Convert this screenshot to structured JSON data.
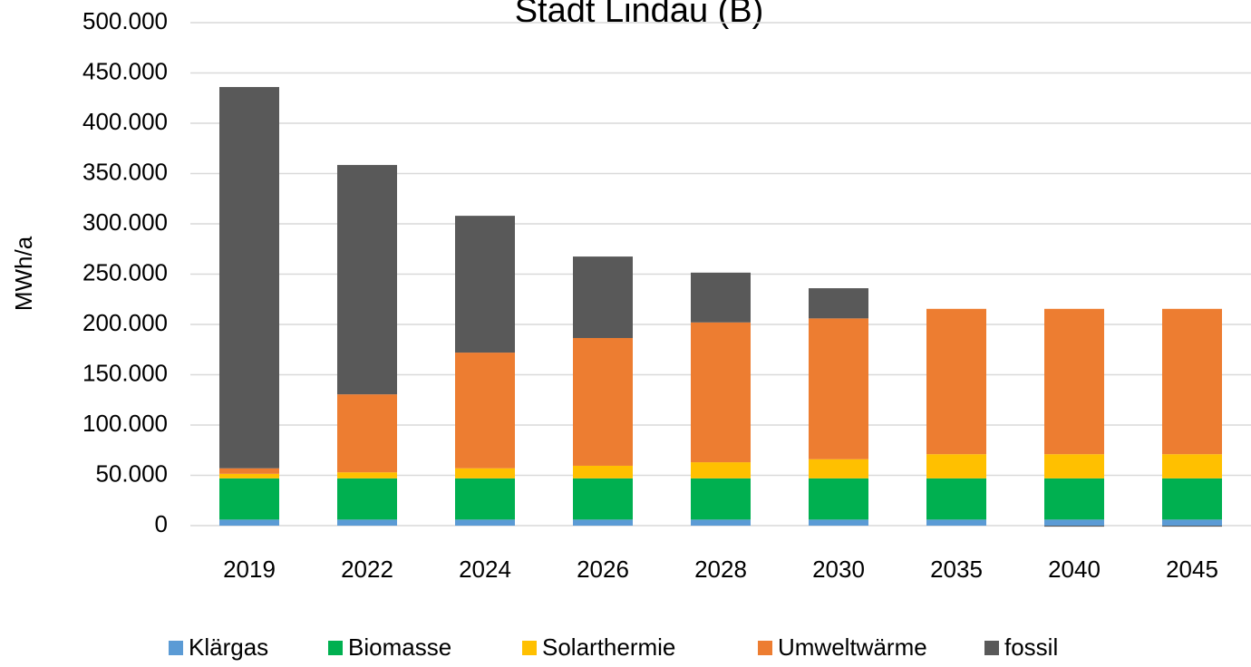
{
  "chart_data": {
    "type": "stacked_bar",
    "title": "Stadt Lindau (B)",
    "y_label": "MWh/a",
    "categories": [
      "2019",
      "2022",
      "2024",
      "2026",
      "2028",
      "2030",
      "2035",
      "2040",
      "2045"
    ],
    "series": [
      {
        "name": "Klärgas",
        "color": "#5b9bd5",
        "values": [
          6000,
          6000,
          6000,
          6000,
          6000,
          6000,
          6000,
          6000,
          6000
        ]
      },
      {
        "name": "Biomasse",
        "color": "#00b050",
        "values": [
          41000,
          41000,
          41000,
          41000,
          41000,
          41000,
          41000,
          41000,
          41000
        ]
      },
      {
        "name": "Solarthermie",
        "color": "#ffc000",
        "values": [
          4500,
          6000,
          10000,
          12500,
          16000,
          19000,
          24000,
          24000,
          24000
        ]
      },
      {
        "name": "Umweltwärme",
        "color": "#ed7d31",
        "values": [
          5500,
          77500,
          115000,
          127000,
          139000,
          140000,
          144500,
          144500,
          144500
        ]
      },
      {
        "name": "fossil",
        "color": "#595959",
        "values": [
          379000,
          228000,
          136000,
          81000,
          49500,
          30000,
          0,
          -1000,
          -1000
        ]
      }
    ],
    "ylim": [
      0,
      500000
    ],
    "yticks": [
      0,
      {
        "value": 50000,
        "label": "50.000"
      },
      {
        "value": 100000,
        "label": "100.000"
      },
      {
        "value": 150000,
        "label": "150.000"
      },
      {
        "value": 200000,
        "label": "200.000"
      },
      {
        "value": 250000,
        "label": "250.000"
      },
      {
        "value": 300000,
        "label": "300.000"
      },
      {
        "value": 350000,
        "label": "350.000"
      },
      {
        "value": 400000,
        "label": "400.000"
      },
      {
        "value": 450000,
        "label": "450.000"
      },
      {
        "value": 500000,
        "label": "500.000"
      }
    ],
    "grid": true,
    "legend": "bottom"
  }
}
